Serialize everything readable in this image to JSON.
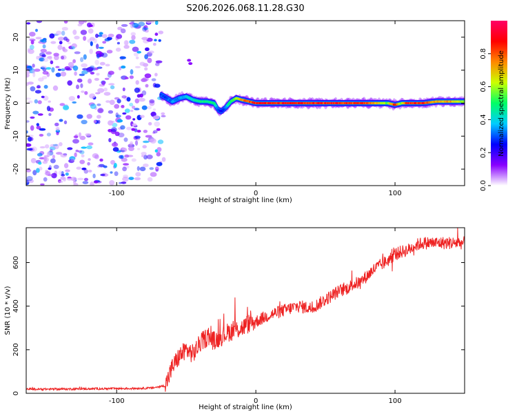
{
  "chart_data": [
    {
      "type": "heatmap",
      "title": "S206.2026.068.11.28.G30",
      "xlabel": "Height of straight line (km)",
      "ylabel": "Frequency (Hz)",
      "xlim": [
        -165,
        150
      ],
      "ylim": [
        -25,
        25
      ],
      "xticks": [
        -100,
        0,
        100
      ],
      "yticks": [
        -20,
        -10,
        0,
        10,
        20
      ],
      "xtick_labels": [
        "-100",
        "0",
        "100"
      ],
      "ytick_labels": [
        "-20",
        "-10",
        "0",
        "10",
        "20"
      ],
      "noise_region_x": [
        -165,
        -68
      ],
      "signal_trace": {
        "x": [
          -68,
          -64,
          -60,
          -55,
          -50,
          -45,
          -40,
          -35,
          -30,
          -27,
          -25,
          -22,
          -18,
          -14,
          -10,
          -5,
          0,
          20,
          40,
          60,
          80,
          95,
          100,
          105,
          110,
          120,
          130,
          140,
          150
        ],
        "frequency": [
          2.5,
          1.5,
          0.5,
          1.5,
          2.0,
          1.0,
          0.5,
          0.5,
          0.0,
          -2.0,
          -2.5,
          -1.5,
          0.5,
          1.5,
          1.0,
          0.5,
          0.0,
          0.0,
          0.0,
          0.0,
          0.0,
          0.0,
          -0.5,
          0.0,
          0.0,
          0.0,
          0.5,
          0.5,
          0.5
        ],
        "amplitude": [
          0.3,
          0.3,
          0.35,
          0.35,
          0.4,
          0.45,
          0.5,
          0.5,
          0.5,
          0.3,
          0.25,
          0.3,
          0.55,
          0.6,
          0.75,
          0.85,
          0.9,
          0.9,
          0.9,
          0.9,
          0.85,
          0.6,
          0.9,
          0.6,
          0.9,
          0.9,
          0.75,
          0.75,
          0.6
        ]
      },
      "colorbar": {
        "label": "Normalized spectral amplitude",
        "range": [
          0.0,
          1.0
        ],
        "ticks": [
          0.0,
          0.2,
          0.4,
          0.6,
          0.8
        ],
        "tick_labels": [
          "0.0",
          "0.2",
          "0.4",
          "0.6",
          "0.8"
        ],
        "colors": [
          "#ffffff",
          "#8800ff",
          "#0000ff",
          "#00ccff",
          "#00ff66",
          "#ccff00",
          "#ff8800",
          "#ff0000",
          "#ff0066"
        ]
      }
    },
    {
      "type": "line",
      "title": "",
      "xlabel": "Height of straight line (km)",
      "ylabel": "SNR (10 * v/v)",
      "xlim": [
        -165,
        150
      ],
      "ylim": [
        0,
        760
      ],
      "xticks": [
        -100,
        0,
        100
      ],
      "yticks": [
        0,
        200,
        400,
        600
      ],
      "xtick_labels": [
        "-100",
        "0",
        "100"
      ],
      "ytick_labels": [
        "0",
        "200",
        "400",
        "600"
      ],
      "line_color": "#ee2222",
      "series": [
        {
          "name": "SNR",
          "x": [
            -165,
            -150,
            -130,
            -110,
            -90,
            -75,
            -65,
            -60,
            -55,
            -50,
            -45,
            -40,
            -35,
            -30,
            -25,
            -20,
            -15,
            -10,
            -5,
            0,
            10,
            20,
            30,
            40,
            50,
            55,
            60,
            65,
            70,
            75,
            80,
            85,
            90,
            95,
            100,
            105,
            110,
            115,
            120,
            130,
            140,
            150
          ],
          "values": [
            18,
            19,
            20,
            21,
            22,
            24,
            35,
            120,
            170,
            200,
            180,
            230,
            260,
            240,
            260,
            280,
            290,
            300,
            320,
            330,
            360,
            380,
            400,
            390,
            430,
            450,
            470,
            480,
            500,
            510,
            540,
            570,
            590,
            610,
            640,
            650,
            660,
            680,
            690,
            690,
            690,
            690
          ]
        }
      ],
      "spikes": [
        {
          "x": -15,
          "value": 440
        },
        {
          "x": -27,
          "value": 340
        },
        {
          "x": -34,
          "value": 300
        },
        {
          "x": 98,
          "value": 560
        },
        {
          "x": 145,
          "value": 760
        }
      ]
    }
  ]
}
